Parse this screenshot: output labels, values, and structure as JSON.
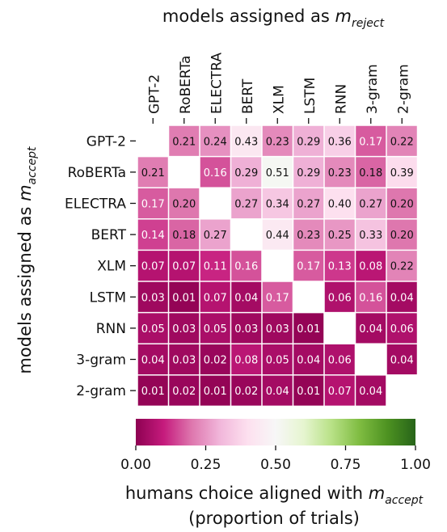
{
  "chart_data": {
    "type": "heatmap",
    "title": {
      "main": "models assigned as ",
      "var": "m",
      "sub": "reject"
    },
    "ylabel": {
      "main": "models assigned as ",
      "var": "m",
      "sub": "accept"
    },
    "colorbar_label": {
      "line1_main": "humans choice aligned with ",
      "var": "m",
      "sub": "accept",
      "line2": "(proportion of trials)"
    },
    "colorbar_ticks": [
      "0.00",
      "0.25",
      "0.50",
      "0.75",
      "1.00"
    ],
    "colorbar_range": [
      0,
      1
    ],
    "colormap": "PiYG",
    "x_categories": [
      "GPT-2",
      "RoBERTa",
      "ELECTRA",
      "BERT",
      "XLM",
      "LSTM",
      "RNN",
      "3-gram",
      "2-gram"
    ],
    "y_categories": [
      "GPT-2",
      "RoBERTa",
      "ELECTRA",
      "BERT",
      "XLM",
      "LSTM",
      "RNN",
      "3-gram",
      "2-gram"
    ],
    "values": [
      [
        null,
        0.21,
        0.24,
        0.43,
        0.23,
        0.29,
        0.36,
        0.17,
        0.22
      ],
      [
        0.21,
        null,
        0.16,
        0.29,
        0.51,
        0.29,
        0.23,
        0.18,
        0.39
      ],
      [
        0.17,
        0.2,
        null,
        0.27,
        0.34,
        0.27,
        0.4,
        0.27,
        0.2
      ],
      [
        0.14,
        0.18,
        0.27,
        null,
        0.44,
        0.23,
        0.25,
        0.33,
        0.2
      ],
      [
        0.07,
        0.07,
        0.11,
        0.16,
        null,
        0.17,
        0.13,
        0.08,
        0.22
      ],
      [
        0.03,
        0.01,
        0.07,
        0.04,
        0.17,
        null,
        0.06,
        0.16,
        0.04
      ],
      [
        0.05,
        0.03,
        0.05,
        0.03,
        0.03,
        0.01,
        null,
        0.04,
        0.06
      ],
      [
        0.04,
        0.03,
        0.02,
        0.08,
        0.05,
        0.04,
        0.06,
        null,
        0.04
      ],
      [
        0.01,
        0.02,
        0.01,
        0.02,
        0.04,
        0.01,
        0.07,
        0.04,
        null
      ]
    ]
  }
}
